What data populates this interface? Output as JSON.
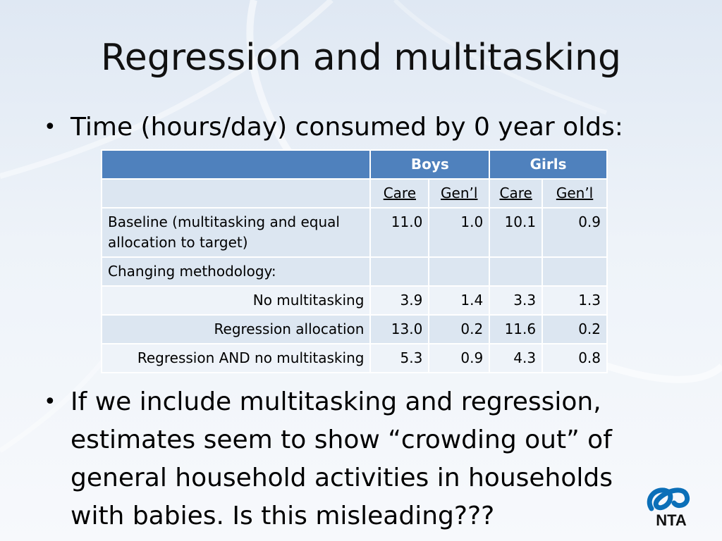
{
  "slide": {
    "title": "Regression and multitasking",
    "bullets": [
      "Time (hours/day) consumed by 0 year olds:",
      "If we include multitasking and regression, estimates seem to show “crowding out” of general household activities in households with babies.  Is this misleading???"
    ],
    "bullet_glyph": "•"
  },
  "table": {
    "group_headers": [
      "",
      "Boys",
      "Girls"
    ],
    "sub_headers": [
      "",
      "Care",
      "Gen’l",
      "Care",
      "Gen’l"
    ],
    "rows": [
      {
        "label": "Baseline (multitasking and equal allocation to target)",
        "align": "left",
        "values": [
          "11.0",
          "1.0",
          "10.1",
          "0.9"
        ]
      },
      {
        "label": "Changing methodology:",
        "align": "left",
        "values": [
          "",
          "",
          "",
          ""
        ]
      },
      {
        "label": "No multitasking",
        "align": "right",
        "values": [
          "3.9",
          "1.4",
          "3.3",
          "1.3"
        ]
      },
      {
        "label": "Regression allocation",
        "align": "right",
        "values": [
          "13.0",
          "0.2",
          "11.6",
          "0.2"
        ]
      },
      {
        "label": "Regression AND no multitasking",
        "align": "right",
        "values": [
          "5.3",
          "0.9",
          "4.3",
          "0.8"
        ]
      }
    ]
  },
  "logo": {
    "text": "NTA",
    "icon": "nta-logo-icon",
    "color": "#0b6fb8"
  },
  "colors": {
    "header_blue": "#4f81bd",
    "row_light": "#dce6f1",
    "row_lighter": "#eef3f9"
  }
}
